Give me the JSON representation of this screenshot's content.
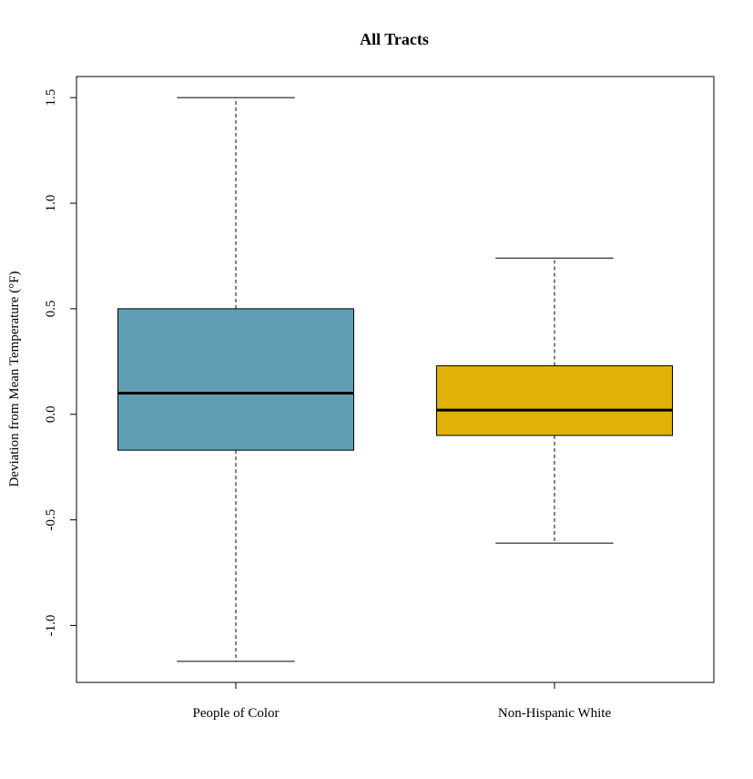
{
  "chart_data": {
    "type": "boxplot",
    "title": "All Tracts",
    "xlabel": "",
    "ylabel": "Deviation from Mean Temperature (°F)",
    "ylim": [
      -1.27,
      1.6
    ],
    "yticks": [
      {
        "value": -1.0,
        "label": "-1.0"
      },
      {
        "value": -0.5,
        "label": "-0.5"
      },
      {
        "value": 0.0,
        "label": "0.0"
      },
      {
        "value": 0.5,
        "label": "0.5"
      },
      {
        "value": 1.0,
        "label": "1.0"
      },
      {
        "value": 1.5,
        "label": "1.5"
      }
    ],
    "grid": false,
    "boxes": [
      {
        "label": "People of Color",
        "whisker_low": -1.17,
        "q1": -0.17,
        "median": 0.1,
        "q3": 0.5,
        "whisker_high": 1.5,
        "color": "#5f9eb5"
      },
      {
        "label": "Non-Hispanic White",
        "whisker_low": -0.61,
        "q1": -0.1,
        "median": 0.02,
        "q3": 0.23,
        "whisker_high": 0.74,
        "color": "#e1b108"
      }
    ]
  }
}
